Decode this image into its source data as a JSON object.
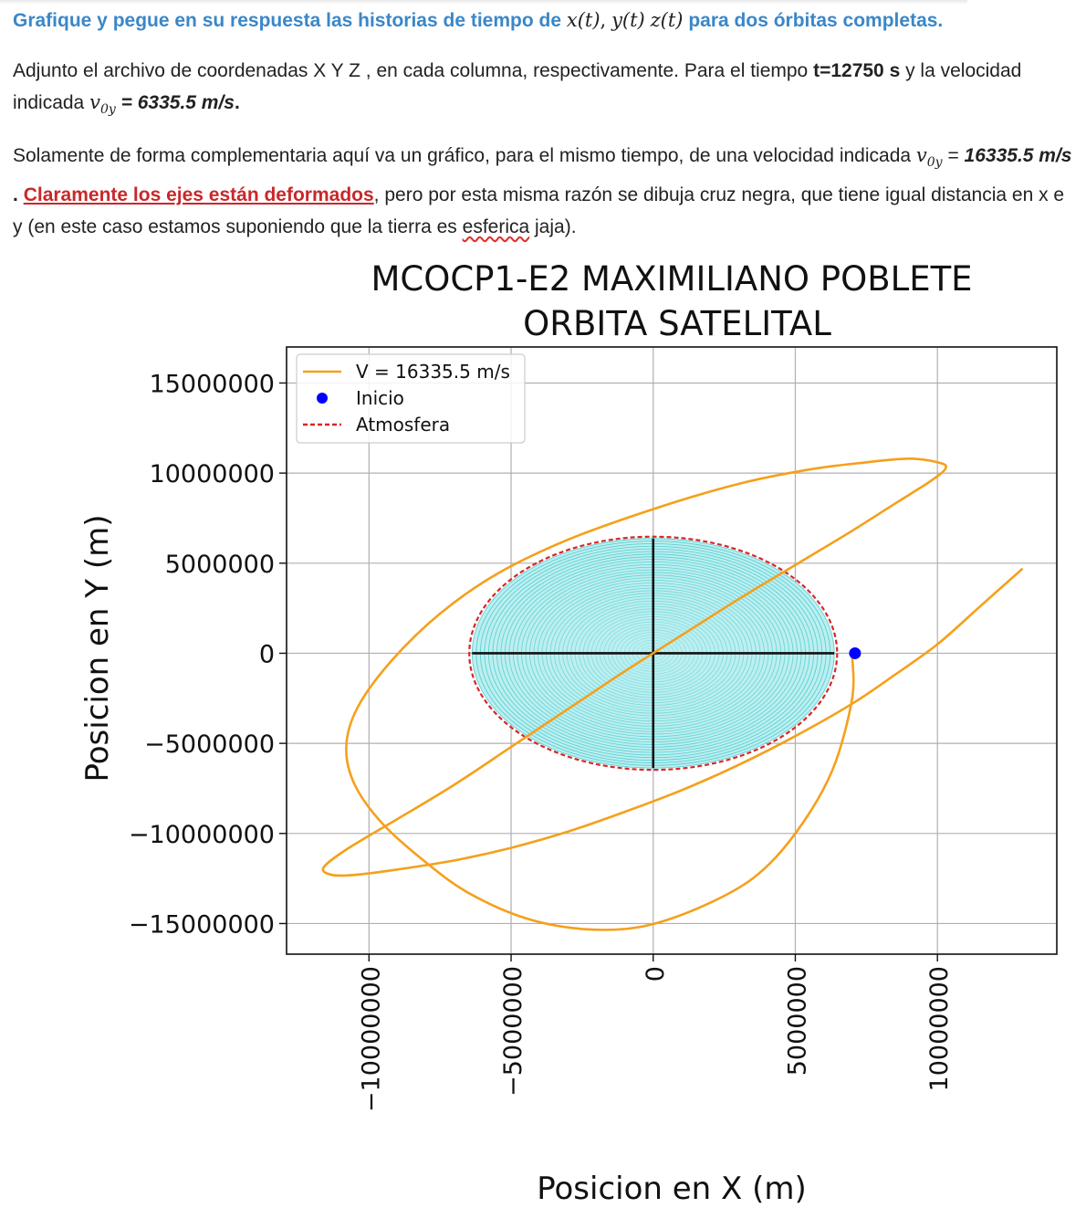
{
  "document": {
    "heading_text": "Grafique y pegue en su respuesta las historias de tiempo de",
    "heading_math": [
      "x(t)",
      "y(t)",
      "z(t)"
    ],
    "heading_tail": "para dos órbitas completas.",
    "para1_a": "Adjunto el archivo de coordenadas X Y Z , en cada columna, respectivamente. Para el tiempo",
    "para1_time": "t=12750 s",
    "para1_b": "y la velocidad indicada",
    "para1_velocity": "= 6335.5 m/s",
    "para2_a": "Solamente de forma complementaria aquí va un gráfico, para el mismo tiempo, de una velocidad indicada",
    "para2_eq": "=",
    "para2_velocity": "16335.5 m/s",
    "para2_link": "Claramente los ejes están deformados",
    "para2_b": ", pero por esta misma razón se dibuja cruz negra, que tiene igual distancia en x e y (en este caso estamos suponiendo que la tierra es",
    "para2_word": "esferica",
    "para2_c": "jaja).",
    "symbol_v": "v",
    "symbol_sub": "0y"
  },
  "colors": {
    "heading": "#3a87c8",
    "link_red": "#c8282a",
    "orbit": "#f5a01a",
    "start_point": "#0000ff",
    "atmosphere": "#d62728",
    "earth_fill": "#bdeff0",
    "cross": "#111111"
  },
  "chart_data": {
    "type": "line",
    "title": "MCOCP1-E2 MAXIMILIANO POBLETE",
    "subtitle": "ORBITA SATELITAL",
    "xlabel": "Posicion en X (m)",
    "ylabel": "Posicion en Y (m)",
    "xlim": [
      -12900000,
      14200000
    ],
    "ylim": [
      -16700000,
      17000000
    ],
    "x_ticks": [
      -10000000,
      -5000000,
      0,
      5000000,
      10000000
    ],
    "x_tick_labels": [
      "−10000000",
      "−5000000",
      "0",
      "5000000",
      "10000000"
    ],
    "y_ticks": [
      15000000,
      10000000,
      5000000,
      0,
      -5000000,
      -10000000,
      -15000000
    ],
    "y_tick_labels": [
      "15000000",
      "10000000",
      "5000000",
      "0",
      "−5000000",
      "−10000000",
      "−15000000"
    ],
    "grid": true,
    "legend_position": "top-left",
    "legend": [
      "V = 16335.5 m/s",
      "Inicio",
      "Atmosfera"
    ],
    "series": [
      {
        "name": "V = 16335.5 m/s",
        "kind": "line",
        "x": [
          13000000,
          11500000,
          10000000,
          8500000,
          7000000,
          5000000,
          3000000,
          1000000,
          -1000000,
          -3000000,
          -5000000,
          -7000000,
          -9000000,
          -10500000,
          -11300000,
          -11600000,
          -10800000,
          -9000000,
          -7000000,
          -5000000,
          -3000000,
          -1000000,
          1000000,
          3000000,
          5000000,
          7000000,
          8500000,
          9800000,
          10300000,
          10000000,
          9000000,
          7500000,
          5500000,
          3000000,
          0,
          -3000000,
          -5500000,
          -7500000,
          -9200000,
          -10400000,
          -10800000,
          -10500000,
          -9500000,
          -8000000,
          -6500000,
          -4500000,
          -2500000,
          -500000,
          1500000,
          3500000,
          5000000,
          6300000,
          7000000,
          7000000,
          7100000
        ],
        "y": [
          4700000,
          2600000,
          500000,
          -1200000,
          -2800000,
          -4600000,
          -6200000,
          -7600000,
          -8800000,
          -9900000,
          -10800000,
          -11500000,
          -12000000,
          -12300000,
          -12300000,
          -11900000,
          -10900000,
          -9200000,
          -7300000,
          -5200000,
          -3100000,
          -1000000,
          1000000,
          3000000,
          4900000,
          6800000,
          8300000,
          9600000,
          10300000,
          10600000,
          10800000,
          10600000,
          10200000,
          9400000,
          8000000,
          6300000,
          4400000,
          2200000,
          -400000,
          -3000000,
          -5200000,
          -7300000,
          -9500000,
          -11600000,
          -13300000,
          -14700000,
          -15300000,
          -15200000,
          -14200000,
          -12500000,
          -10000000,
          -6500000,
          -2500000,
          0,
          0
        ]
      },
      {
        "name": "Inicio",
        "kind": "point",
        "x": [
          7100000
        ],
        "y": [
          0
        ]
      },
      {
        "name": "Atmosfera",
        "kind": "circle",
        "center": [
          0,
          0
        ],
        "radius": 6471000
      }
    ],
    "earth_radius": 6371000,
    "cross_half_length": 6371000
  }
}
